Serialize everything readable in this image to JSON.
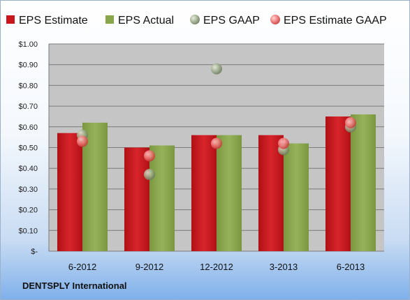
{
  "company": "DENTSPLY International",
  "chart_data": {
    "type": "bar",
    "categories": [
      "6-2012",
      "9-2012",
      "12-2012",
      "3-2013",
      "6-2013"
    ],
    "series": [
      {
        "name": "EPS Estimate",
        "kind": "bar",
        "color": "#c8161c",
        "values": [
          0.57,
          0.5,
          0.56,
          0.56,
          0.65
        ]
      },
      {
        "name": "EPS Actual",
        "kind": "bar",
        "color": "#8aa64c",
        "values": [
          0.62,
          0.51,
          0.56,
          0.52,
          0.66
        ]
      },
      {
        "name": "EPS GAAP",
        "kind": "point",
        "color": "#9fae8c",
        "values": [
          0.56,
          0.37,
          0.88,
          0.49,
          0.6
        ]
      },
      {
        "name": "EPS Estimate GAAP",
        "kind": "point",
        "color": "#f06e6e",
        "values": [
          0.53,
          0.46,
          0.52,
          0.52,
          0.62
        ]
      }
    ],
    "ylim": [
      0,
      1.0
    ],
    "yticks": [
      "$-",
      "$0.10",
      "$0.20",
      "$0.30",
      "$0.40",
      "$0.50",
      "$0.60",
      "$0.70",
      "$0.80",
      "$0.90",
      "$1.00"
    ],
    "grid": true,
    "legend": "top"
  }
}
